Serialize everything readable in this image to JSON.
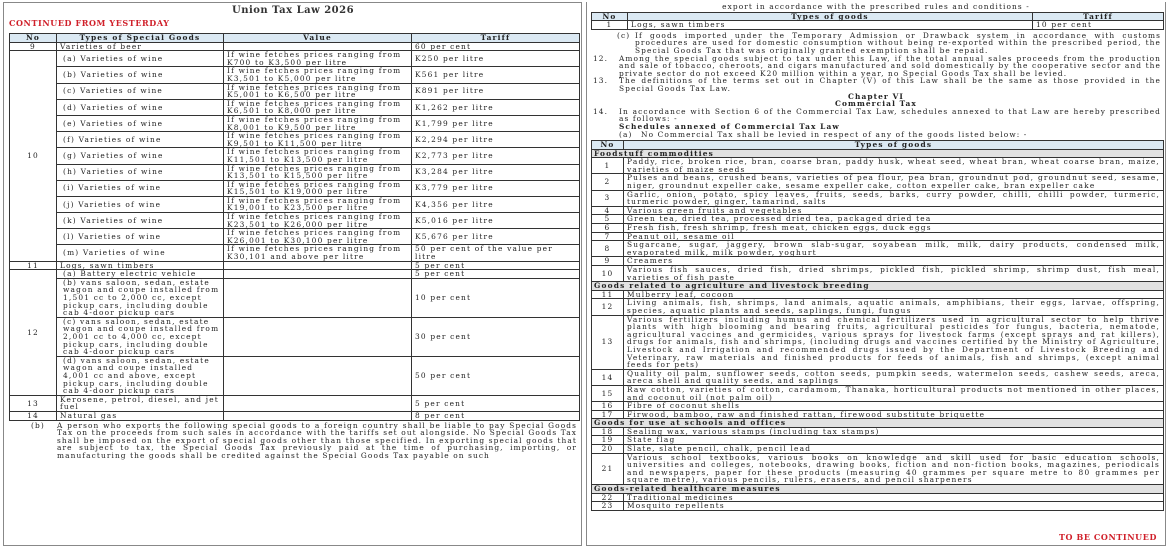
{
  "header": {
    "title": "Union Tax Law 2026",
    "continued_label": "CONTINUED FROM YESTERDAY",
    "to_be_continued_label": "TO BE CONTINUED",
    "accent_color": "#d0202a",
    "table_header_color": "#dbe9f3"
  },
  "special_goods_table": {
    "headers": [
      "No",
      "Types of Special Goods",
      "Value",
      "Tariff"
    ],
    "rows": [
      {
        "no": "9",
        "items": [
          {
            "goods": "Varieties of beer",
            "value": "",
            "tariff": "60 per cent"
          }
        ]
      },
      {
        "no": "10",
        "items": [
          {
            "goods": "(a) Varieties of wine",
            "value": "If wine fetches prices ranging from K700 to K3,500 per litre",
            "tariff": "K250 per litre"
          },
          {
            "goods": "(b) Varieties of wine",
            "value": "If wine fetches prices ranging from K3,501 to K5,000 per litre",
            "tariff": "K561 per litre"
          },
          {
            "goods": "(c) Varieties of wine",
            "value": "If wine fetches prices ranging from K5,001 to K6,500 per litre",
            "tariff": "K891 per litre"
          },
          {
            "goods": "(d) Varieties of wine",
            "value": "If wine fetches prices ranging from K6,501 to K8,000 per litre",
            "tariff": "K1,262 per litre"
          },
          {
            "goods": "(e) Varieties of wine",
            "value": "If wine fetches prices ranging from K8,001 to K9,500 per litre",
            "tariff": "K1,799 per litre"
          },
          {
            "goods": "(f) Varieties of wine",
            "value": "If wine fetches prices ranging from K9,501 to K11,500 per litre",
            "tariff": "K2,294 per litre"
          },
          {
            "goods": "(g) Varieties of wine",
            "value": "If wine fetches prices ranging from K11,501 to K13,500 per litre",
            "tariff": "K2,773 per litre"
          },
          {
            "goods": "(h) Varieties of wine",
            "value": "If wine fetches prices ranging from K13,501 to K15,500 per litre",
            "tariff": "K3,284 per litre"
          },
          {
            "goods": "(i) Varieties of wine",
            "value": "If wine fetches prices ranging from K15,501 to K19,000 per litre",
            "tariff": "K3,779 per litre"
          },
          {
            "goods": "(j) Varieties of wine",
            "value": "If wine fetches prices ranging from K19,001 to K23,500 per litre",
            "tariff": "K4,356 per litre"
          },
          {
            "goods": "(k) Varieties of wine",
            "value": "If wine fetches prices ranging from K23,501 to K26,000 per litre",
            "tariff": "K5,016 per litre"
          },
          {
            "goods": "(l) Varieties of wine",
            "value": "If wine fetches prices ranging from K26,001 to K30,100 per litre",
            "tariff": "K5,676 per litre"
          },
          {
            "goods": "(m) Varieties of wine",
            "value": "If wine fetches prices ranging from K30,101 and above per litre",
            "tariff": "50 per cent of the value per litre"
          }
        ]
      },
      {
        "no": "11",
        "items": [
          {
            "goods": "Logs, sawn timbers",
            "value": "",
            "tariff": "5 per cent"
          }
        ]
      },
      {
        "no": "12",
        "items": [
          {
            "goods": "(a) Battery electric vehicle",
            "value": "",
            "tariff": "5 per cent"
          },
          {
            "goods": "(b) vans saloon, sedan, estate wagon and coupe installed from 1,501 cc to 2,000 cc, except pickup cars, including double cab 4-door pickup cars",
            "value": "",
            "tariff": "10 per cent"
          },
          {
            "goods": "(c) vans saloon, sedan, estate wagon and coupe installed from 2,001 cc to 4,000 cc, except pickup cars, including double cab 4-door pickup cars",
            "value": "",
            "tariff": "30 per cent"
          },
          {
            "goods": "(d) vans saloon, sedan, estate wagon and coupe installed 4,001 cc and above, except pickup cars, including double cab 4-door pickup cars",
            "value": "",
            "tariff": "50 per cent"
          }
        ]
      },
      {
        "no": "13",
        "items": [
          {
            "goods": "Kerosene, petrol, diesel, and jet fuel",
            "value": "",
            "tariff": "5 per cent"
          }
        ]
      },
      {
        "no": "14",
        "items": [
          {
            "goods": "Natural gas",
            "value": "",
            "tariff": "8 per cent"
          }
        ]
      }
    ]
  },
  "para_b": {
    "label": "(b)",
    "text": "A person who exports the following special goods to a foreign country shall be liable to pay Special Goods Tax on the proceeds from such sales in accordance with the tariffs set out alongside. No Special Goods Tax shall be imposed on the export of special goods other than those specified. In exporting special goods that are subject to tax, the Special Goods Tax previously paid at the time of purchasing, importing, or manufacturing the goods shall be credited against the Special Goods Tax payable on such"
  },
  "right": {
    "top_line": "export in accordance with the prescribed rules and conditions -",
    "export_table": {
      "headers": [
        "No",
        "Types of goods",
        "Tariff"
      ],
      "rows": [
        {
          "no": "1",
          "goods": "Logs, sawn timbers",
          "tariff": "10 per cent"
        }
      ]
    },
    "para_c": {
      "label": "(c)",
      "text": "If goods imported under the Temporary Admission or Drawback system in accordance with customs procedures are used for domestic consumption without being re-exported within the prescribed period, the Special Goods Tax that was originally granted exemption shall be repaid."
    },
    "para_12": {
      "label": "12.",
      "text": "Among the special goods subject to tax under this Law, if the total annual sales proceeds from the production and sale of tobacco, cheroots, and cigars manufactured and sold domestically by the cooperative sector and the private sector do not exceed K20 million within a year, no Special Goods Tax shall be levied."
    },
    "para_13": {
      "label": "13.",
      "text": "The definitions of the terms set out in Chapter (V) of this Law shall be the same as those provided in the Special Goods Tax Law."
    },
    "chapter": "Chapter VI",
    "chapter_title": "Commercial Tax",
    "para_14": {
      "label": "14.",
      "text": "In accordance with Section 6 of the Commercial Tax Law, schedules annexed to that Law are hereby prescribed as follows: -"
    },
    "schedules_heading": "Schedules annexed of Commercial Tax Law",
    "para_a": {
      "label": "(a)",
      "text": "No Commercial Tax shall be levied in respect of any of the goods listed below: -"
    },
    "goods_table": {
      "headers": [
        "No",
        "Types of goods"
      ],
      "rows": [
        {
          "category": "Foodstuff commodities"
        },
        {
          "no": "1",
          "goods": "Paddy, rice, broken rice, bran, coarse bran, paddy husk, wheat seed, wheat bran, wheat coarse bran, maize, varieties of maize seeds"
        },
        {
          "no": "2",
          "goods": "Pulses and beans, crushed beans, varieties of pea flour, pea bran, groundnut pod, groundnut seed, sesame, niger, groundnut expeller cake, sesame expeller cake, cotton expeller cake, bran expeller cake"
        },
        {
          "no": "3",
          "goods": "Garlic, onion, potato, spicy leaves, fruits, seeds, barks, curry powder, chilli, chilli powder, turmeric, turmeric powder, ginger, tamarind, salts"
        },
        {
          "no": "4",
          "goods": "Various green fruits and vegetables"
        },
        {
          "no": "5",
          "goods": "Green tea, dried tea, processed dried tea, packaged dried tea"
        },
        {
          "no": "6",
          "goods": "Fresh fish, fresh shrimp, fresh meat, chicken eggs, duck eggs"
        },
        {
          "no": "7",
          "goods": "Peanut oil, sesame oil"
        },
        {
          "no": "8",
          "goods": "Sugarcane, sugar, jaggery, brown slab-sugar, soyabean milk, milk, dairy products, condensed milk, evaporated milk, milk powder, yoghurt"
        },
        {
          "no": "9",
          "goods": "Creamers"
        },
        {
          "no": "10",
          "goods": "Various fish sauces, dried fish, dried shrimps, pickled fish, pickled shrimp, shrimp dust, fish meal, varieties of fish paste"
        },
        {
          "category": "Goods related to agriculture and livestock breeding"
        },
        {
          "no": "11",
          "goods": "Mulberry leaf, cocoon"
        },
        {
          "no": "12",
          "goods": "Living animals, fish, shrimps, land animals, aquatic animals, amphibians, their eggs, larvae, offspring, species, aquatic plants and seeds, saplings, fungi, fungus"
        },
        {
          "no": "13",
          "goods": "Various fertilizers including humus and chemical fertilizers used in agricultural sector to help thrive plants with high blooming and bearing fruits, agricultural pesticides for fungus, bacteria, nematode, agricultural vaccines and germicides, various sprays for livestock farms (except sprays and rat killers), drugs for animals, fish and shrimps, (including drugs and vaccines certified by the Ministry of Agriculture, Livestock and Irrigation and recommended drugs issued by the Department of Livestock Breeding and Veterinary, raw materials and finished products for feeds of animals, fish and shrimps, (except animal feeds for pets)"
        },
        {
          "no": "14",
          "goods": "Quality oil palm, sunflower seeds, cotton seeds, pumpkin seeds, watermelon seeds, cashew seeds, areca, areca shell and quality seeds, and saplings"
        },
        {
          "no": "15",
          "goods": "Raw cotton, varieties of cotton, cardamom, Thanaka, horticultural products not mentioned in other places, and coconut oil (not palm oil)"
        },
        {
          "no": "16",
          "goods": "Fibre of coconut shells"
        },
        {
          "no": "17",
          "goods": "Firwood, bamboo, raw and finished rattan, firewood substitute briquette"
        },
        {
          "category": "Goods for use at schools and offices"
        },
        {
          "no": "18",
          "goods": "Sealing wax, various stamps (including tax stamps)"
        },
        {
          "no": "19",
          "goods": "State flag"
        },
        {
          "no": "20",
          "goods": "Slate, slate pencil, chalk, pencil lead"
        },
        {
          "no": "21",
          "goods": "Various school textbooks, various books on knowledge and skill used for basic education schools, universities and colleges, notebooks, drawing books, fiction and non-fiction books, magazines, periodicals and newspapers, paper for these products (measuring 40 grammes per square metre to 80 grammes per square metre), various pencils, rulers, erasers, and pencil sharpeners"
        },
        {
          "category": "Goods-related healthcare measures"
        },
        {
          "no": "22",
          "goods": "Traditional medicines"
        },
        {
          "no": "23",
          "goods": "Mosquito repellents"
        }
      ]
    }
  }
}
